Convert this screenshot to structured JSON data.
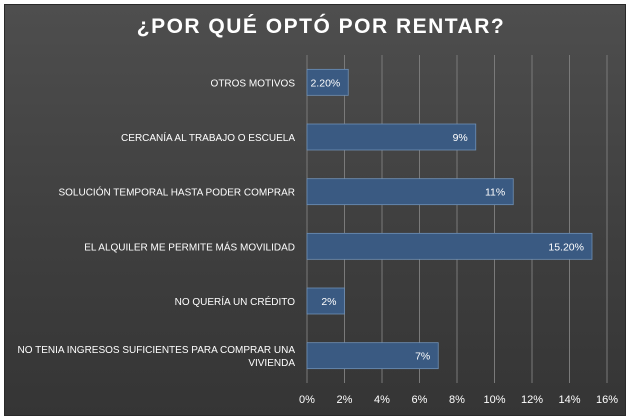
{
  "chart_data": {
    "type": "bar",
    "orientation": "horizontal",
    "title": "¿POR QUÉ OPTÓ POR RENTAR?",
    "categories": [
      "OTROS MOTIVOS",
      "CERCANÍA AL TRABAJO O ESCUELA",
      "SOLUCIÓN TEMPORAL HASTA PODER COMPRAR",
      "EL ALQUILER ME PERMITE MÁS MOVILIDAD",
      "NO QUERÍA UN CRÉDITO",
      "NO TENIA INGRESOS SUFICIENTES PARA COMPRAR UNA VIVIENDA"
    ],
    "category_label_lines": [
      [
        "OTROS MOTIVOS"
      ],
      [
        "CERCANÍA AL TRABAJO O ESCUELA"
      ],
      [
        "SOLUCIÓN TEMPORAL HASTA PODER COMPRAR"
      ],
      [
        "EL ALQUILER ME PERMITE MÁS MOVILIDAD"
      ],
      [
        "NO QUERÍA UN CRÉDITO"
      ],
      [
        "NO TENIA INGRESOS SUFICIENTES PARA COMPRAR UNA",
        "VIVIENDA"
      ]
    ],
    "values": [
      2.2,
      9,
      11,
      15.2,
      2,
      7
    ],
    "data_labels": [
      "2.20%",
      "9%",
      "11%",
      "15.20%",
      "2%",
      "7%"
    ],
    "xlim": [
      0,
      16
    ],
    "x_ticks": [
      "0%",
      "2%",
      "4%",
      "6%",
      "8%",
      "10%",
      "12%",
      "14%",
      "16%"
    ],
    "xlabel": "",
    "ylabel": "",
    "grid": true,
    "legend": "none",
    "colors": {
      "background": "#3f3f3f",
      "bar": "#3a5a82",
      "bar_border": "#6e8fb5",
      "text": "#ffffff",
      "grid": "#7a7a7a"
    }
  }
}
